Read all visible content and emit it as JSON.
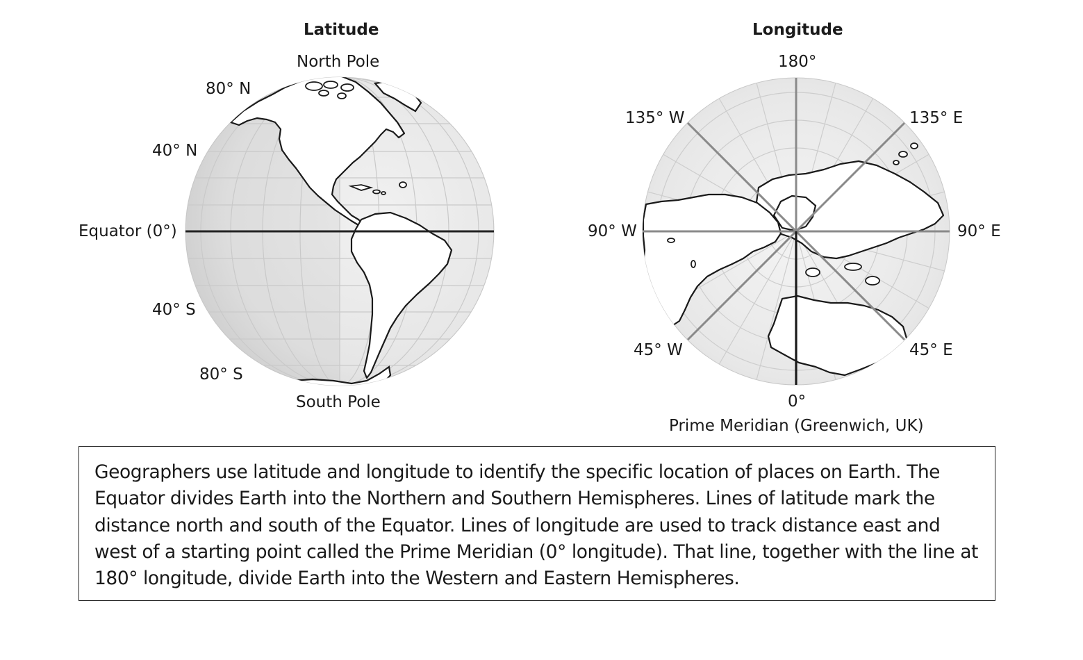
{
  "latitude_panel": {
    "title": "Latitude",
    "top_label": "North Pole",
    "bottom_label": "South Pole",
    "labels": {
      "lat_80n": "80° N",
      "lat_40n": "40° N",
      "equator": "Equator (0°)",
      "lat_40s": "40° S",
      "lat_80s": "80° S"
    }
  },
  "longitude_panel": {
    "title": "Longitude",
    "labels": {
      "lon_180": "180°",
      "lon_135w": "135° W",
      "lon_135e": "135° E",
      "lon_90w": "90° W",
      "lon_90e": "90° E",
      "lon_45w": "45° W",
      "lon_45e": "45° E",
      "lon_0": "0°",
      "prime_meridian": "Prime Meridian (Greenwich, UK)"
    }
  },
  "caption": {
    "text": "Geographers use latitude and longitude to identify the specific location of places on Earth. The Equator divides Earth into the Northern and Southern Hemispheres. Lines of latitude mark the distance north and south of the Equator. Lines of longitude are used to track distance east and west of a starting point called the Prime Meridian (0° longitude). That line, together with the line at 180° longitude, divide Earth into the Western and Eastern Hemispheres."
  }
}
